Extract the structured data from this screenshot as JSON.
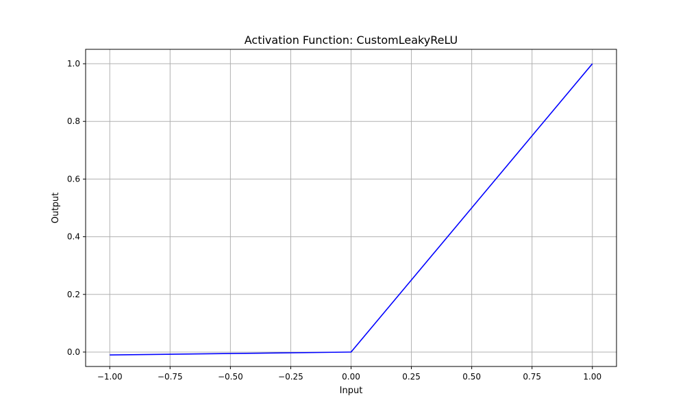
{
  "chart_data": {
    "type": "line",
    "title": "Activation Function: CustomLeakyReLU",
    "xlabel": "Input",
    "ylabel": "Output",
    "xlim": [
      -1.1,
      1.1
    ],
    "ylim": [
      -0.05,
      1.05
    ],
    "grid": true,
    "x_ticks": [
      -1.0,
      -0.75,
      -0.5,
      -0.25,
      0.0,
      0.25,
      0.5,
      0.75,
      1.0
    ],
    "x_tick_labels": [
      "−1.00",
      "−0.75",
      "−0.50",
      "−0.25",
      "0.00",
      "0.25",
      "0.50",
      "0.75",
      "1.00"
    ],
    "y_ticks": [
      0.0,
      0.2,
      0.4,
      0.6,
      0.8,
      1.0
    ],
    "y_tick_labels": [
      "0.0",
      "0.2",
      "0.4",
      "0.6",
      "0.8",
      "1.0"
    ],
    "series": [
      {
        "color": "#0000ff",
        "x": [
          -1.0,
          -0.5,
          0.0,
          0.25,
          0.5,
          0.75,
          1.0
        ],
        "y": [
          -0.01,
          -0.005,
          0.0,
          0.25,
          0.5,
          0.75,
          1.0
        ]
      }
    ]
  }
}
